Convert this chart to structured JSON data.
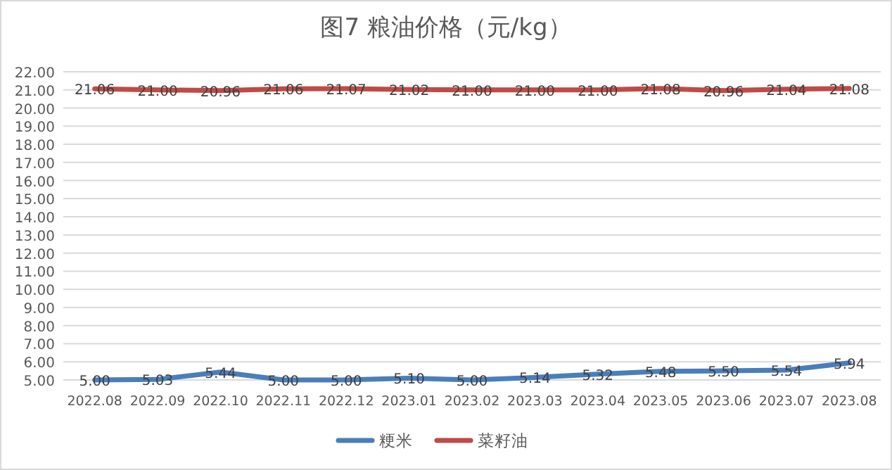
{
  "chart_data": {
    "type": "line",
    "title": "图7 粮油价格（元/kg）",
    "categories": [
      "2022.08",
      "2022.09",
      "2022.10",
      "2022.11",
      "2022.12",
      "2023.01",
      "2023.02",
      "2023.03",
      "2023.04",
      "2023.05",
      "2023.06",
      "2023.07",
      "2023.08"
    ],
    "series": [
      {
        "name": "粳米",
        "color": "#4a7ebb",
        "values": [
          5.0,
          5.03,
          5.44,
          5.0,
          5.0,
          5.1,
          5.0,
          5.14,
          5.32,
          5.48,
          5.5,
          5.54,
          5.94
        ],
        "value_labels": [
          "5.00",
          "5.03",
          "5.44",
          "5.00",
          "5.00",
          "5.10",
          "5.00",
          "5.14",
          "5.32",
          "5.48",
          "5.50",
          "5.54",
          "5.94"
        ]
      },
      {
        "name": "菜籽油",
        "color": "#be4b48",
        "values": [
          21.06,
          21.0,
          20.96,
          21.06,
          21.07,
          21.02,
          21.0,
          21.0,
          21.0,
          21.08,
          20.96,
          21.04,
          21.08
        ],
        "value_labels": [
          "21.06",
          "21.00",
          "20.96",
          "21.06",
          "21.07",
          "21.02",
          "21.00",
          "21.00",
          "21.00",
          "21.08",
          "20.96",
          "21.04",
          "21.08"
        ]
      }
    ],
    "ylim": [
      5,
      22
    ],
    "yticks": [
      {
        "value": 5,
        "label": "5.00"
      },
      {
        "value": 6,
        "label": "6.00"
      },
      {
        "value": 7,
        "label": "7.00"
      },
      {
        "value": 8,
        "label": "8.00"
      },
      {
        "value": 9,
        "label": "9.00"
      },
      {
        "value": 10,
        "label": "10.00"
      },
      {
        "value": 11,
        "label": "11.00"
      },
      {
        "value": 12,
        "label": "12.00"
      },
      {
        "value": 13,
        "label": "13.00"
      },
      {
        "value": 14,
        "label": "14.00"
      },
      {
        "value": 15,
        "label": "15.00"
      },
      {
        "value": 16,
        "label": "16.00"
      },
      {
        "value": 17,
        "label": "17.00"
      },
      {
        "value": 18,
        "label": "18.00"
      },
      {
        "value": 19,
        "label": "19.00"
      },
      {
        "value": 20,
        "label": "20.00"
      },
      {
        "value": 21,
        "label": "21.00"
      },
      {
        "value": 22,
        "label": "22.00"
      }
    ],
    "grid": "y",
    "legend": "bottom"
  }
}
